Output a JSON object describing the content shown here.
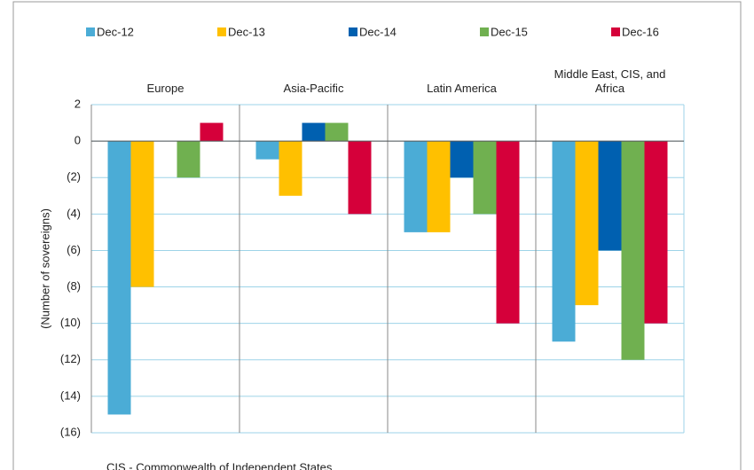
{
  "chart_data": {
    "type": "bar",
    "categories": [
      "Europe",
      "Asia-Pacific",
      "Latin America",
      "Middle East, CIS, and Africa"
    ],
    "series": [
      {
        "name": "Dec-12",
        "color": "#4bacd6",
        "values": [
          -15,
          -1,
          -5,
          -11
        ]
      },
      {
        "name": "Dec-13",
        "color": "#ffc000",
        "values": [
          -8,
          -3,
          -5,
          -9
        ]
      },
      {
        "name": "Dec-14",
        "color": "#0060b0",
        "values": [
          0,
          1,
          -2,
          -6
        ]
      },
      {
        "name": "Dec-15",
        "color": "#70b050",
        "values": [
          -2,
          1,
          -4,
          -12
        ]
      },
      {
        "name": "Dec-16",
        "color": "#d5003a",
        "values": [
          1,
          -4,
          -10,
          -10
        ]
      }
    ],
    "ylabel": "(Number of sovereigns)",
    "ylim": [
      -16,
      2
    ],
    "yticks": [
      {
        "value": -16,
        "label": "(16)"
      },
      {
        "value": -14,
        "label": "(14)"
      },
      {
        "value": -12,
        "label": "(12)"
      },
      {
        "value": -10,
        "label": "(10)"
      },
      {
        "value": -8,
        "label": "(8)"
      },
      {
        "value": -6,
        "label": "(6)"
      },
      {
        "value": -4,
        "label": "(4)"
      },
      {
        "value": -2,
        "label": "(2)"
      },
      0,
      2
    ],
    "grid": true,
    "legend": "top",
    "footnote": "CIS - Commonwealth of Independent States"
  }
}
